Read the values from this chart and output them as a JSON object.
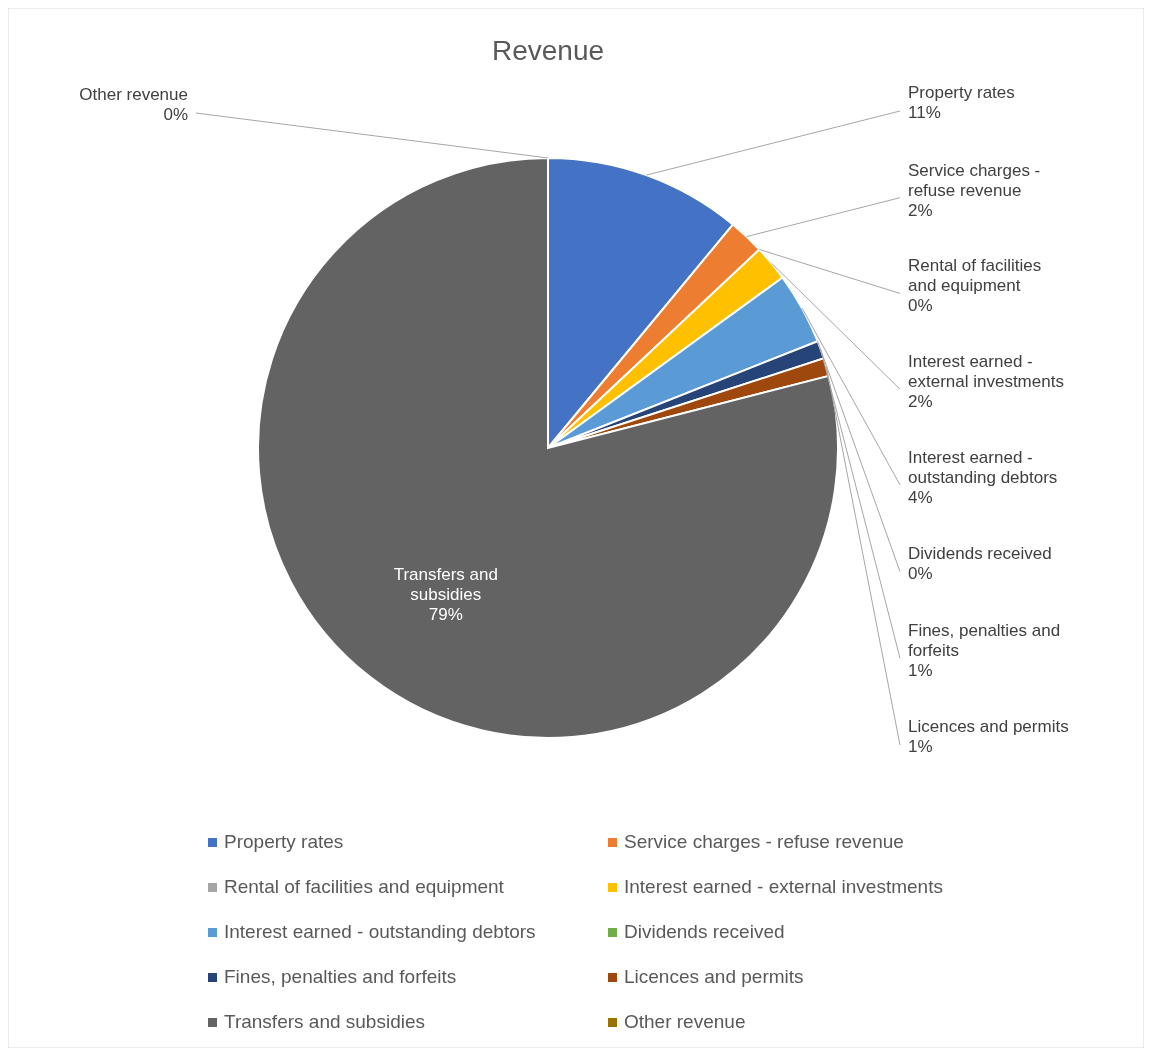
{
  "chart_data": {
    "type": "pie",
    "title": "Revenue",
    "categories": [
      "Property rates",
      "Service charges - refuse revenue",
      "Rental of facilities and equipment",
      "Interest earned - external investments",
      "Interest earned - outstanding debtors",
      "Dividends received",
      "Fines, penalties and forfeits",
      "Licences and permits",
      "Transfers and subsidies",
      "Other revenue"
    ],
    "values": [
      11,
      2,
      0,
      2,
      4,
      0,
      1,
      1,
      79,
      0
    ],
    "colors": [
      "#4472c4",
      "#ed7d31",
      "#a5a5a5",
      "#ffc000",
      "#5b9bd5",
      "#70ad47",
      "#264478",
      "#9e480e",
      "#636363",
      "#997300"
    ],
    "value_labels": [
      "11%",
      "2%",
      "0%",
      "2%",
      "4%",
      "0%",
      "1%",
      "1%",
      "79%",
      "0%"
    ],
    "legend": "bottom"
  }
}
